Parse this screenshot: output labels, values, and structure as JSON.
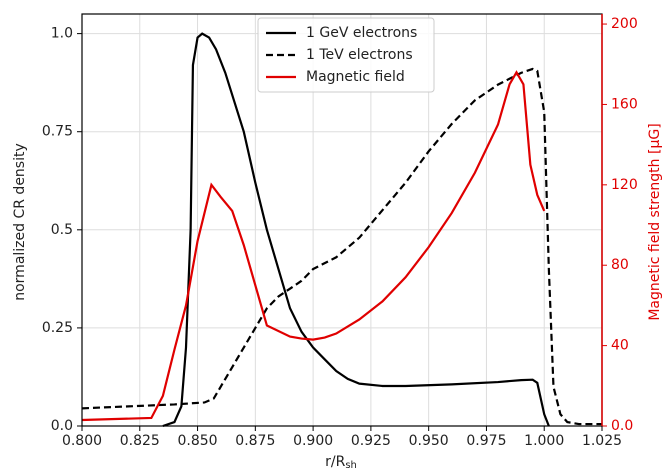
{
  "chart_data": {
    "type": "line",
    "xlabel": "r/R",
    "xlabel_sub": "sh",
    "ylabel": "normalized CR density",
    "y2label": "Magnetic field strength [μG]",
    "xlim": [
      0.8,
      1.025
    ],
    "xticks": [
      {
        "value": 0.8,
        "label": "0.800"
      },
      {
        "value": 0.825,
        "label": "0.825"
      },
      {
        "value": 0.85,
        "label": "0.850"
      },
      {
        "value": 0.875,
        "label": "0.875"
      },
      {
        "value": 0.9,
        "label": "0.900"
      },
      {
        "value": 0.925,
        "label": "0.925"
      },
      {
        "value": 0.95,
        "label": "0.950"
      },
      {
        "value": 0.975,
        "label": "0.975"
      },
      {
        "value": 1.0,
        "label": "1.000"
      },
      {
        "value": 1.025,
        "label": "1.025"
      }
    ],
    "ylim": [
      0,
      1.05
    ],
    "yticks": [
      {
        "value": 0,
        "label": "0.0"
      },
      0.25,
      0.5,
      0.75,
      {
        "value": 1,
        "label": "1.0"
      }
    ],
    "y2lim": [
      0,
      205
    ],
    "y2ticks": [
      {
        "value": 0,
        "label": "0.0"
      },
      40,
      80,
      120,
      160,
      200
    ],
    "y2color": "#e00000",
    "grid": true,
    "legend": "upper center",
    "series": [
      {
        "name": "1 GeV electrons",
        "color": "#000000",
        "dash": false,
        "x": [
          0.835,
          0.84,
          0.843,
          0.845,
          0.847,
          0.848,
          0.85,
          0.852,
          0.855,
          0.858,
          0.862,
          0.87,
          0.875,
          0.88,
          0.885,
          0.89,
          0.895,
          0.9,
          0.905,
          0.91,
          0.915,
          0.92,
          0.93,
          0.94,
          0.96,
          0.98,
          0.99,
          0.995,
          0.997,
          1.0,
          1.002
        ],
        "values": [
          0,
          0.01,
          0.05,
          0.2,
          0.5,
          0.92,
          0.99,
          1.0,
          0.99,
          0.96,
          0.9,
          0.75,
          0.62,
          0.5,
          0.4,
          0.3,
          0.24,
          0.2,
          0.17,
          0.14,
          0.12,
          0.108,
          0.102,
          0.102,
          0.106,
          0.112,
          0.117,
          0.118,
          0.11,
          0.03,
          0
        ]
      },
      {
        "name": "1 TeV electrons",
        "color": "#000000",
        "dash": true,
        "x": [
          0.8,
          0.82,
          0.84,
          0.853,
          0.857,
          0.86,
          0.865,
          0.87,
          0.875,
          0.88,
          0.885,
          0.89,
          0.895,
          0.9,
          0.91,
          0.92,
          0.93,
          0.94,
          0.95,
          0.96,
          0.97,
          0.98,
          0.99,
          0.995,
          0.997,
          1.0,
          1.002,
          1.004,
          1.007,
          1.01,
          1.015,
          1.025
        ],
        "values": [
          0.045,
          0.05,
          0.055,
          0.06,
          0.07,
          0.1,
          0.15,
          0.2,
          0.25,
          0.3,
          0.33,
          0.35,
          0.37,
          0.4,
          0.43,
          0.48,
          0.55,
          0.62,
          0.7,
          0.77,
          0.83,
          0.87,
          0.9,
          0.91,
          0.905,
          0.8,
          0.4,
          0.1,
          0.03,
          0.01,
          0.005,
          0.005
        ]
      },
      {
        "name": "Magnetic field",
        "color": "#e00000",
        "dash": false,
        "axis": "y2",
        "x": [
          0.8,
          0.83,
          0.835,
          0.84,
          0.845,
          0.85,
          0.856,
          0.86,
          0.865,
          0.87,
          0.875,
          0.88,
          0.89,
          0.895,
          0.9,
          0.905,
          0.91,
          0.92,
          0.93,
          0.94,
          0.95,
          0.96,
          0.97,
          0.98,
          0.985,
          0.988,
          0.991,
          0.994,
          0.997,
          1.0
        ],
        "values": [
          3,
          4,
          15,
          38,
          60,
          92,
          120,
          114,
          107,
          90,
          70,
          50,
          44.5,
          43.5,
          43,
          44,
          46,
          53,
          62,
          74,
          89,
          106,
          126,
          150,
          170,
          176,
          170,
          130,
          115,
          107
        ]
      }
    ]
  }
}
